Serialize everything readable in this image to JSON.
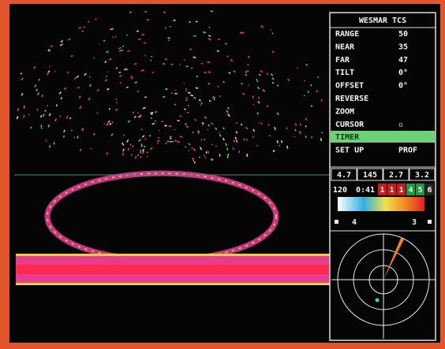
{
  "panel": {
    "title": "WESMAR TCS",
    "menu": [
      {
        "label": "RANGE",
        "value": "50"
      },
      {
        "label": "NEAR",
        "value": "35"
      },
      {
        "label": "FAR",
        "value": "47"
      },
      {
        "label": "TILT",
        "value": "0°"
      },
      {
        "label": "OFFSET",
        "value": "0°"
      },
      {
        "label": "REVERSE"
      },
      {
        "label": "ZOOM"
      },
      {
        "label": "CURSOR",
        "value": "▫"
      },
      {
        "label": "TIMER",
        "selected": true
      },
      {
        "label": "SET UP",
        "value": "PROF"
      }
    ],
    "readouts": [
      "4.7",
      "145",
      "2.7",
      "3.2"
    ],
    "status": [
      "120",
      "0:41"
    ],
    "indicators": [
      {
        "label": "1",
        "color": "#d01818"
      },
      {
        "label": "1",
        "color": "#d01818"
      },
      {
        "label": "1",
        "color": "#d01818"
      },
      {
        "label": "4",
        "color": "#1a9a3a"
      },
      {
        "label": "5",
        "color": "#1a9a3a"
      },
      {
        "label": "6",
        "color": "#222222"
      }
    ],
    "cursor_left": "4",
    "cursor_right": "3"
  }
}
